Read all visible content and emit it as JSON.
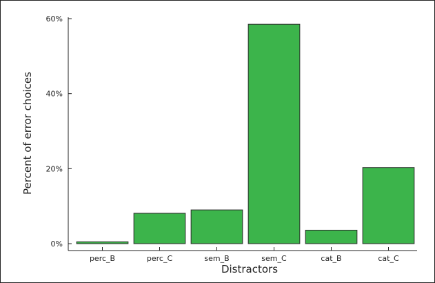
{
  "chart_data": {
    "type": "bar",
    "categories": [
      "perc_B",
      "perc_C",
      "sem_B",
      "sem_C",
      "cat_B",
      "cat_C"
    ],
    "values": [
      0.5,
      8.1,
      9.0,
      58.5,
      3.6,
      20.3
    ],
    "xlabel": "Distractors",
    "ylabel": "Percent of error choices",
    "ylim": [
      0,
      60
    ],
    "yticks": [
      0,
      20,
      40,
      60
    ],
    "ytick_labels": [
      "0%",
      "20%",
      "40%",
      "60%"
    ],
    "bar_color": "#3cb44b",
    "bar_edge_color": "#2a2a2a",
    "grid": false,
    "legend": "none"
  }
}
